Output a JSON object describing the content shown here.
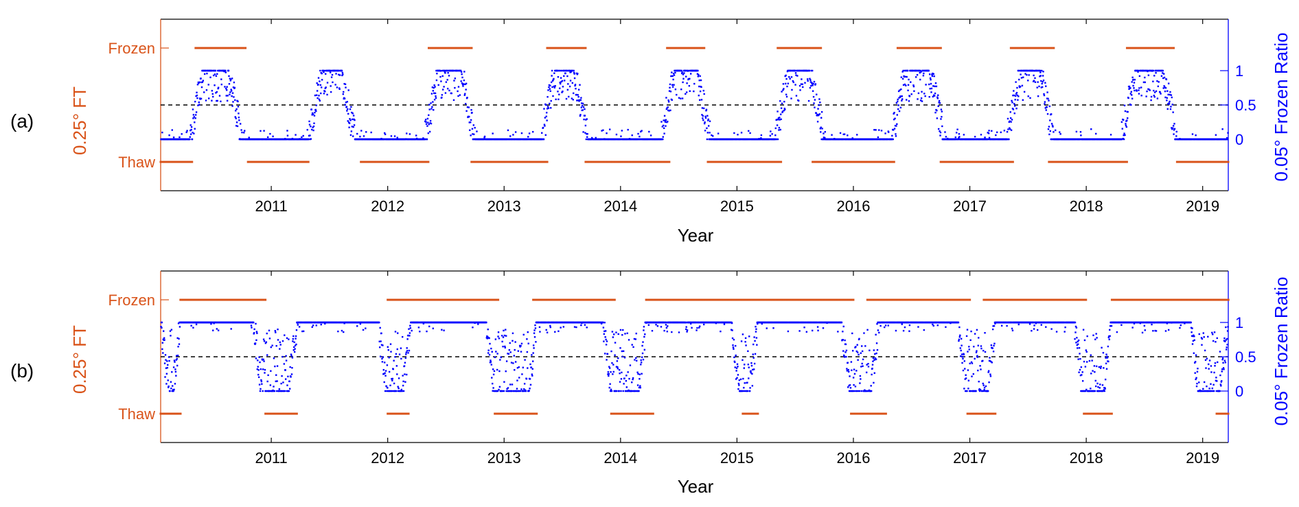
{
  "colors": {
    "ft": "#D95319",
    "ratio": "#0000FF",
    "axis": "#000000",
    "threshold": "#000000"
  },
  "chart_data": [
    {
      "panel_label": "(a)",
      "type": "scatter",
      "xlabel": "Year",
      "ylabel_left": "0.25° FT",
      "ylabel_right": "0.05° Frozen Ratio",
      "left_ticks": [
        "Frozen",
        "Thaw"
      ],
      "right_ticks": [
        "1",
        "0.5",
        "0"
      ],
      "x_ticks": [
        "2011",
        "2012",
        "2013",
        "2014",
        "2015",
        "2016",
        "2017",
        "2018",
        "2019"
      ],
      "xlim": [
        2010.55,
        2019.72
      ],
      "right_ylim": [
        -0.75,
        1.75
      ],
      "threshold": 0.5,
      "ft_frozen_intervals": [
        [
          2010.85,
          2011.28
        ],
        [
          2012.85,
          2013.22
        ],
        [
          2013.87,
          2014.2
        ],
        [
          2014.9,
          2015.22
        ],
        [
          2015.85,
          2016.22
        ],
        [
          2016.88,
          2017.25
        ],
        [
          2017.85,
          2018.22
        ],
        [
          2018.85,
          2019.25
        ]
      ],
      "ft_thaw_intervals": [
        [
          2010.55,
          2010.82
        ],
        [
          2011.3,
          2011.82
        ],
        [
          2012.27,
          2012.85
        ],
        [
          2013.22,
          2013.87
        ],
        [
          2014.2,
          2014.92
        ],
        [
          2015.25,
          2015.88
        ],
        [
          2016.15,
          2016.85
        ],
        [
          2017.25,
          2017.87
        ],
        [
          2018.18,
          2018.85
        ],
        [
          2019.28,
          2019.72
        ]
      ],
      "ratio_winters": [
        [
          2010.8,
          2011.25
        ],
        [
          2011.82,
          2012.22
        ],
        [
          2012.82,
          2013.25
        ],
        [
          2013.82,
          2014.22
        ],
        [
          2014.85,
          2015.27
        ],
        [
          2015.83,
          2016.25
        ],
        [
          2016.83,
          2017.28
        ],
        [
          2017.82,
          2018.22
        ],
        [
          2018.8,
          2019.28
        ]
      ]
    },
    {
      "panel_label": "(b)",
      "type": "scatter",
      "xlabel": "Year",
      "ylabel_left": "0.25° FT",
      "ylabel_right": "0.05° Frozen Ratio",
      "left_ticks": [
        "Frozen",
        "Thaw"
      ],
      "right_ticks": [
        "1",
        "0.5",
        "0"
      ],
      "x_ticks": [
        "2011",
        "2012",
        "2013",
        "2014",
        "2015",
        "2016",
        "2017",
        "2018",
        "2019"
      ],
      "xlim": [
        2010.55,
        2019.72
      ],
      "right_ylim": [
        -0.75,
        1.75
      ],
      "threshold": 0.5,
      "ft_frozen_intervals": [
        [
          2010.72,
          2011.45
        ],
        [
          2012.5,
          2013.45
        ],
        [
          2013.75,
          2014.45
        ],
        [
          2014.72,
          2015.6
        ],
        [
          2015.6,
          2016.5
        ],
        [
          2016.62,
          2017.5
        ],
        [
          2017.62,
          2018.5
        ],
        [
          2018.72,
          2019.72
        ]
      ],
      "ft_thaw_intervals": [
        [
          2010.55,
          2010.72
        ],
        [
          2011.45,
          2011.72
        ],
        [
          2012.5,
          2012.68
        ],
        [
          2013.42,
          2013.78
        ],
        [
          2014.42,
          2014.78
        ],
        [
          2015.55,
          2015.68
        ],
        [
          2016.48,
          2016.78
        ],
        [
          2017.48,
          2017.72
        ],
        [
          2018.48,
          2018.72
        ],
        [
          2019.62,
          2019.72
        ]
      ],
      "ratio_summers": [
        [
          2010.55,
          2010.72
        ],
        [
          2011.35,
          2011.72
        ],
        [
          2012.42,
          2012.7
        ],
        [
          2013.35,
          2013.78
        ],
        [
          2014.35,
          2014.72
        ],
        [
          2015.45,
          2015.68
        ],
        [
          2016.4,
          2016.72
        ],
        [
          2017.4,
          2017.72
        ],
        [
          2018.4,
          2018.72
        ],
        [
          2019.4,
          2019.72
        ]
      ]
    }
  ]
}
